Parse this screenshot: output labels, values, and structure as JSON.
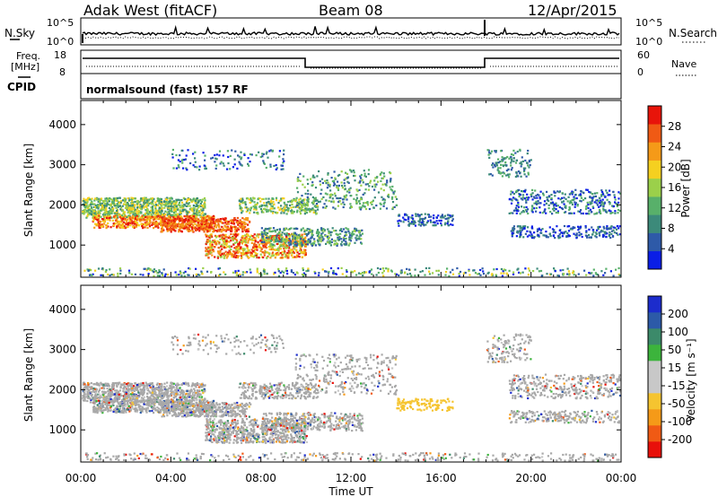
{
  "header": {
    "station": "Adak West (fitACF)",
    "beam": "Beam 08",
    "date": "12/Apr/2015"
  },
  "panels": {
    "nsky_label": "N.Sky",
    "nsearch_label": "N.Search",
    "freq_label_1": "Freq.",
    "freq_label_2": "[MHz]",
    "nave_label": "Nave",
    "cpid_label": "CPID",
    "cpid_text": "normalsound (fast) 157 RF",
    "noise_left_ticks": [
      "10^5",
      "10^0"
    ],
    "noise_right_ticks": [
      "10^5",
      "10^0"
    ],
    "freq_ticks": [
      "18",
      "8"
    ],
    "nave_ticks": [
      "60",
      "0"
    ]
  },
  "colors": {
    "power_scale": [
      "#0a1ee6",
      "#2e5aa8",
      "#3c8a7a",
      "#58b06a",
      "#9bd04a",
      "#f5d020",
      "#f59a18",
      "#f05a14",
      "#e8140a"
    ],
    "velocity_scale": [
      "#e8100a",
      "#f05a14",
      "#f59a18",
      "#f5c430",
      "#c8c8c8",
      "#c8c8c8",
      "#3cb43c",
      "#3c8a6a",
      "#2c5aa8",
      "#1c2ccc"
    ],
    "ground_scatter": "#a8a8a8"
  },
  "chart_data": [
    {
      "type": "heatmap",
      "ylabel": "Slant Range [km]",
      "x_ticks": [
        "00:00",
        "04:00",
        "08:00",
        "12:00",
        "16:00",
        "20:00",
        "00:00"
      ],
      "y_ticks": [
        "1000",
        "2000",
        "3000",
        "4000"
      ],
      "ylim": [
        200,
        4600
      ],
      "colorbar_label": "Power [dB]",
      "colorbar_ticks": [
        "4",
        "8",
        "12",
        "16",
        "20",
        "24",
        "28"
      ],
      "colorbar_range": [
        0,
        32
      ]
    },
    {
      "type": "heatmap",
      "ylabel": "Slant Range [km]",
      "xlabel": "Time UT",
      "x_ticks": [
        "00:00",
        "04:00",
        "08:00",
        "12:00",
        "16:00",
        "20:00",
        "00:00"
      ],
      "y_ticks": [
        "1000",
        "2000",
        "3000",
        "4000"
      ],
      "ylim": [
        200,
        4600
      ],
      "colorbar_label": "Velocity [m s⁻¹]",
      "colorbar_ticks": [
        "200",
        "100",
        "50",
        "15",
        "-15",
        "-50",
        "-100",
        "-200"
      ]
    }
  ]
}
